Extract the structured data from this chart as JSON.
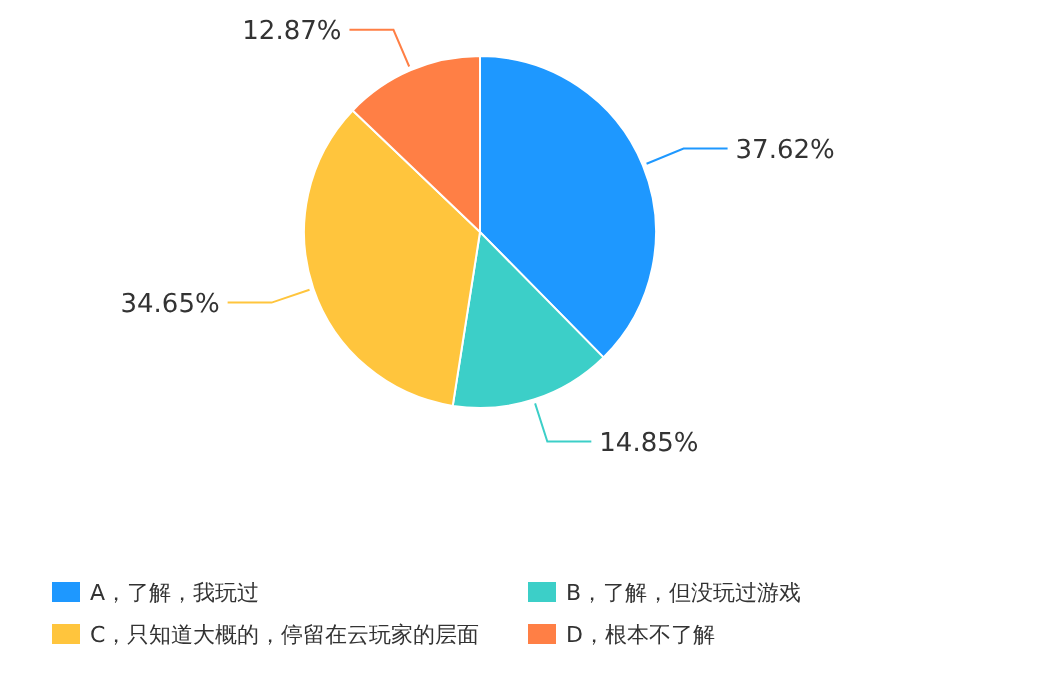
{
  "chart_data": {
    "type": "pie",
    "categories": [
      "A，了解，我玩过",
      "B，了解，但没玩过游戏",
      "C，只知道大概的，停留在云玩家的层面",
      "D，根本不了解"
    ],
    "values": [
      37.62,
      14.85,
      34.65,
      12.87
    ],
    "colors": [
      "#1e98ff",
      "#3ccfc8",
      "#ffc53d",
      "#ff7f45"
    ],
    "value_labels": [
      "37.62%",
      "14.85%",
      "34.65%",
      "12.87%"
    ],
    "legend": "bottom"
  }
}
